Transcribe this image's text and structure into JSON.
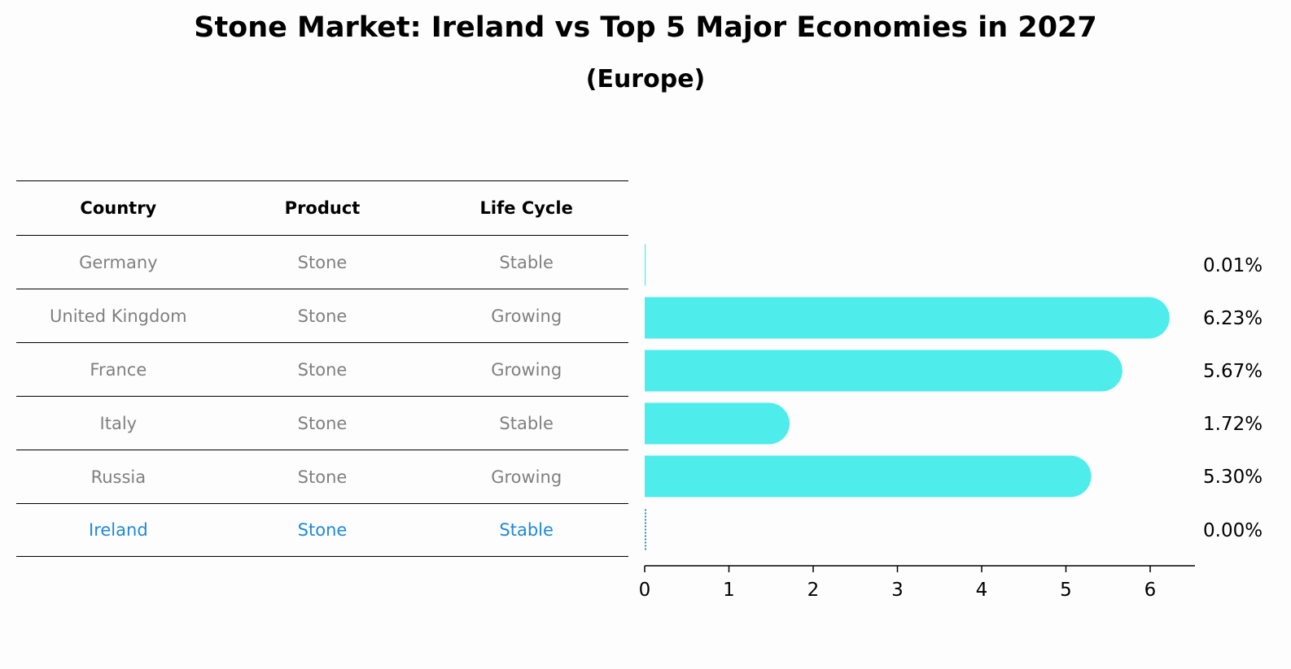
{
  "title": "Stone Market: Ireland vs Top 5 Major Economies in 2027",
  "subtitle": "(Europe)",
  "table": {
    "headers": [
      "Country",
      "Product",
      "Life Cycle"
    ],
    "rows": [
      {
        "country": "Germany",
        "product": "Stone",
        "life_cycle": "Stable"
      },
      {
        "country": "United Kingdom",
        "product": "Stone",
        "life_cycle": "Growing"
      },
      {
        "country": "France",
        "product": "Stone",
        "life_cycle": "Growing"
      },
      {
        "country": "Italy",
        "product": "Stone",
        "life_cycle": "Stable"
      },
      {
        "country": "Russia",
        "product": "Stone",
        "life_cycle": "Growing"
      },
      {
        "country": "Ireland",
        "product": "Stone",
        "life_cycle": "Stable"
      }
    ]
  },
  "colors": {
    "bar": "#4eeceb",
    "highlight": "#1f8ad6",
    "muted_text": "#808080"
  },
  "chart_data": {
    "type": "bar",
    "orientation": "horizontal",
    "categories": [
      "Germany",
      "United Kingdom",
      "France",
      "Italy",
      "Russia",
      "Ireland"
    ],
    "values": [
      0.01,
      6.23,
      5.67,
      1.72,
      5.3,
      0.0
    ],
    "value_labels": [
      "0.01%",
      "6.23%",
      "5.67%",
      "1.72%",
      "5.30%",
      "0.00%"
    ],
    "xlim": [
      0,
      6.5
    ],
    "xticks": [
      0,
      1,
      2,
      3,
      4,
      5,
      6
    ],
    "grid": false
  }
}
